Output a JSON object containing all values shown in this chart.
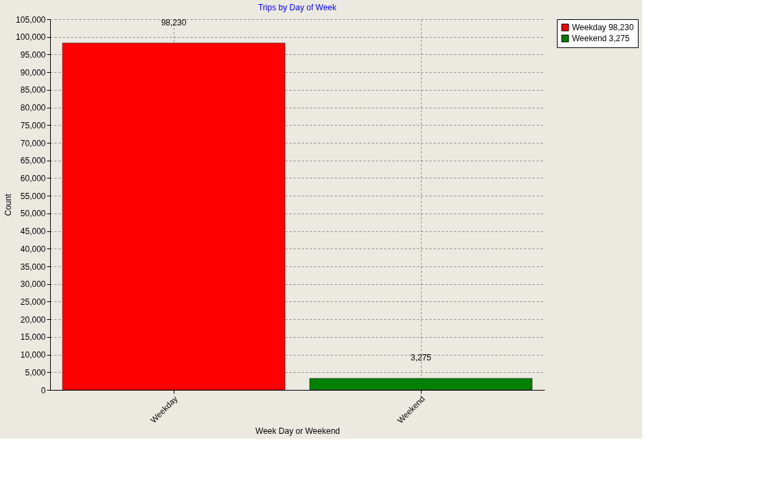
{
  "chart_data": {
    "type": "bar",
    "title": "Trips by Day of Week",
    "xlabel": "Week Day or Weekend",
    "ylabel": "Count",
    "categories": [
      "Weekday",
      "Weekend"
    ],
    "series": [
      {
        "name": "Weekday 98,230",
        "color": "#ff0000",
        "values": [
          98230,
          null
        ],
        "value_labels": [
          "98,230",
          null
        ]
      },
      {
        "name": "Weekend  3,275",
        "color": "#008000",
        "values": [
          null,
          3275
        ],
        "value_labels": [
          null,
          "3,275"
        ]
      }
    ],
    "ylim": [
      0,
      105000
    ],
    "yticks": [
      0,
      {
        "value": 5000,
        "label": "5,000"
      },
      {
        "value": 10000,
        "label": "10,000"
      },
      {
        "value": 15000,
        "label": "15,000"
      },
      {
        "value": 20000,
        "label": "20,000"
      },
      {
        "value": 25000,
        "label": "25,000"
      },
      {
        "value": 30000,
        "label": "30,000"
      },
      {
        "value": 35000,
        "label": "35,000"
      },
      {
        "value": 40000,
        "label": "40,000"
      },
      {
        "value": 45000,
        "label": "45,000"
      },
      {
        "value": 50000,
        "label": "50,000"
      },
      {
        "value": 55000,
        "label": "55,000"
      },
      {
        "value": 60000,
        "label": "60,000"
      },
      {
        "value": 65000,
        "label": "65,000"
      },
      {
        "value": 70000,
        "label": "70,000"
      },
      {
        "value": 75000,
        "label": "75,000"
      },
      {
        "value": 80000,
        "label": "80,000"
      },
      {
        "value": 85000,
        "label": "85,000"
      },
      {
        "value": 90000,
        "label": "90,000"
      },
      {
        "value": 95000,
        "label": "95,000"
      },
      {
        "value": 100000,
        "label": "100,000"
      },
      {
        "value": 105000,
        "label": "105,000"
      }
    ],
    "grid": true,
    "legend": "top right"
  }
}
